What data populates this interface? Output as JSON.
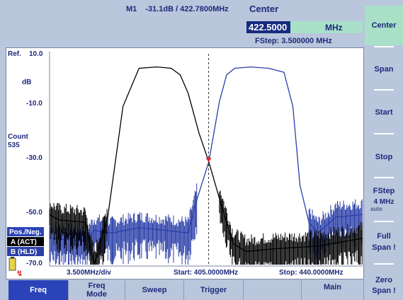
{
  "header": {
    "marker_label": "M1",
    "marker_value": "-31.1dB / 422.7800MHz",
    "center_label": "Center",
    "center_value": "422.5000",
    "center_unit": "MHz",
    "fstep": "FStep: 3.500000 MHz"
  },
  "plot": {
    "ref_label": "Ref.",
    "ref_value": "10.0",
    "unit": "dB",
    "y_ticks": [
      "-10.0",
      "-30.0",
      "-50.0",
      "-70.0"
    ],
    "count_label": "Count",
    "count_value": "535",
    "mode_label": "Pos./Neg.",
    "trace_a": "A (ACT)",
    "trace_b": "B (HLD)",
    "div_label": "3.500MHz/div",
    "start_label": "Start: 405.0000MHz",
    "stop_label": "Stop: 440.0000MHz",
    "colors": {
      "trace_a": "#000000",
      "trace_b": "#2a3ea8",
      "marker": "#e0202a"
    }
  },
  "softkeys": {
    "center": "Center",
    "span": "Span",
    "start": "Start",
    "stop": "Stop",
    "fstep_label": "FStep",
    "fstep_value": "4 MHz",
    "fstep_mode": "auto",
    "full_span_1": "Full",
    "full_span_2": "Span !",
    "zero_span_1": "Zero",
    "zero_span_2": "Span !"
  },
  "tabs": {
    "freq": "Freq",
    "freq_mode_1": "Freq",
    "freq_mode_2": "Mode",
    "sweep": "Sweep",
    "trigger": "Trigger",
    "blank": "",
    "main": "Main",
    "blank2": ""
  },
  "chart_data": {
    "type": "line",
    "xlabel": "",
    "ylabel": "dB",
    "x_range": [
      405.0,
      440.0
    ],
    "ylim": [
      -70,
      10
    ],
    "grid": false,
    "series": [
      {
        "name": "A (ACT)",
        "x": [
          405.0,
          406.0,
          409.0,
          410.0,
          411.5,
          413.2,
          415.0,
          417.0,
          418.6,
          419.6,
          420.5,
          421.7,
          422.8,
          424.0,
          425.5,
          427.0,
          430.0,
          435.0,
          440.0
        ],
        "y": [
          -51,
          -53,
          -54,
          -70,
          -52,
          -10,
          4.5,
          5.0,
          4.5,
          2,
          -5,
          -20,
          -31,
          -45,
          -62,
          -65,
          -64,
          -63,
          -60
        ]
      },
      {
        "name": "B (HLD)",
        "x": [
          405.0,
          409.0,
          410.0,
          412.0,
          415.0,
          418.0,
          420.5,
          421.5,
          422.8,
          424.0,
          424.8,
          425.7,
          427.5,
          429.5,
          431.2,
          432.2,
          433.0,
          434.0,
          435.0,
          437.0,
          440.0
        ],
        "y": [
          -60,
          -61,
          -57,
          -58,
          -56,
          -57,
          -58,
          -45,
          -31,
          -8,
          2,
          4.5,
          5,
          4.5,
          3,
          -10,
          -40,
          -54,
          -58,
          -52,
          -51
        ]
      }
    ],
    "marker": {
      "name": "M1",
      "x": 422.78,
      "y": -31.1
    }
  }
}
